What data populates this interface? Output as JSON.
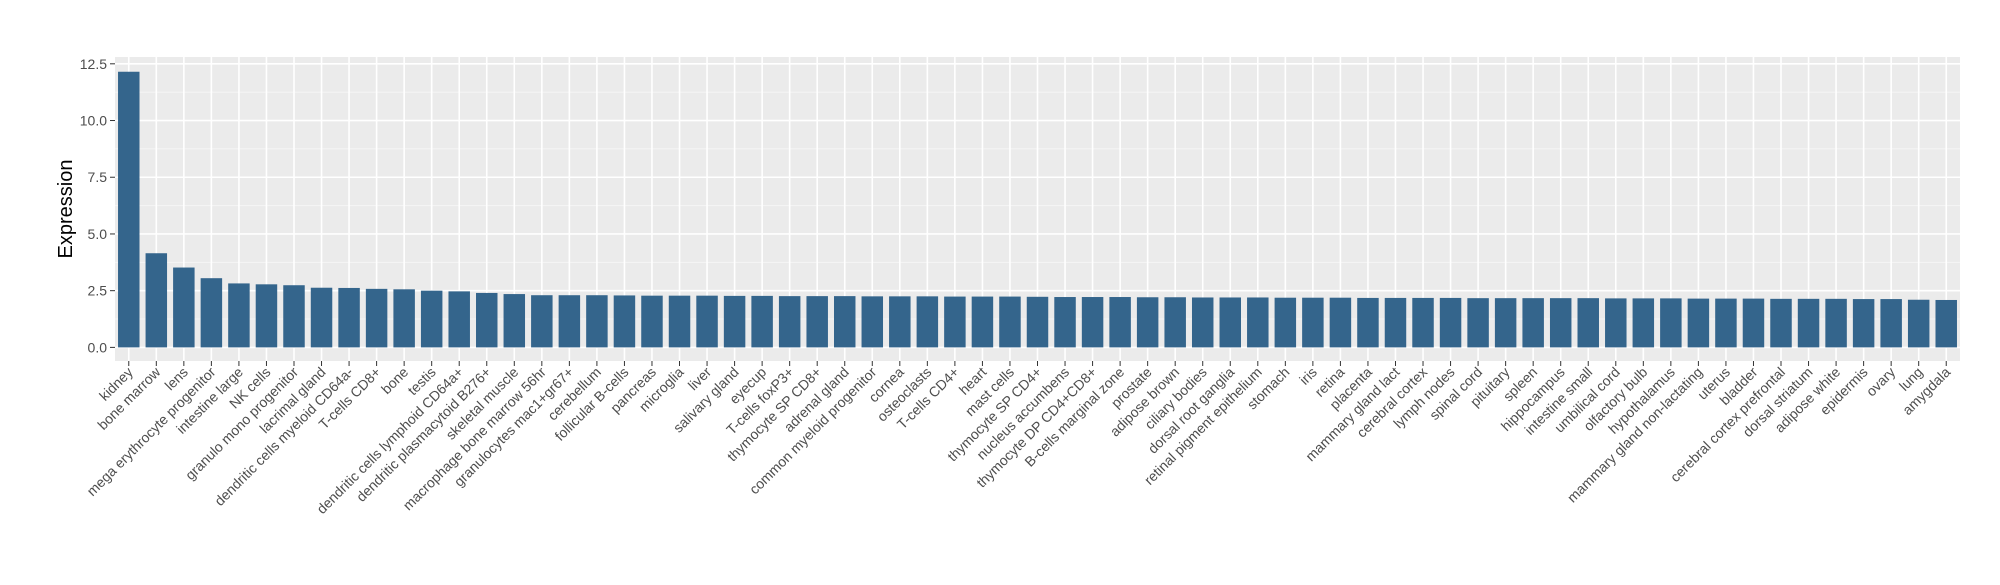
{
  "chart_data": {
    "type": "bar",
    "title": "",
    "xlabel": "",
    "ylabel": "Expression",
    "ylim": [
      -0.6,
      12.8
    ],
    "yticks": [
      0.0,
      2.5,
      5.0,
      7.5,
      10.0,
      12.5
    ],
    "ytick_labels": [
      "0.0",
      "2.5",
      "5.0",
      "7.5",
      "10.0",
      "12.5"
    ],
    "grid": true,
    "legend": "none",
    "colors": {
      "bar": "#34658c",
      "panel": "#ebebeb",
      "grid_major": "#ffffff",
      "grid_minor": "#f5f5f5"
    },
    "categories": [
      "kidney",
      "bone marrow",
      "lens",
      "mega erythrocyte progenitor",
      "intestine large",
      "NK cells",
      "granulo mono progenitor",
      "lacrimal gland",
      "dendritic cells myeloid CD64a-",
      "T-cells CD8+",
      "bone",
      "testis",
      "dendritic cells lymphoid CD64a+",
      "dendritic plasmacytoid B276+",
      "skeletal muscle",
      "macrophage bone marrow 56hr",
      "granulocytes mac1+gr67+",
      "cerebellum",
      "follicular B-cells",
      "pancreas",
      "microglia",
      "liver",
      "salivary gland",
      "eyecup",
      "T-cells foxP3+",
      "thymocyte SP CD8+",
      "adrenal gland",
      "common myeloid progenitor",
      "cornea",
      "osteoclasts",
      "T-cells CD4+",
      "heart",
      "mast cells",
      "thymocyte SP CD4+",
      "nucleus accumbens",
      "thymocyte DP CD4+CD8+",
      "B-cells marginal zone",
      "prostate",
      "adipose brown",
      "ciliary bodies",
      "dorsal root ganglia",
      "retinal pigment epithelium",
      "stomach",
      "iris",
      "retina",
      "placenta",
      "mammary gland  lact",
      "cerebral cortex",
      "lymph nodes",
      "spinal cord",
      "pituitary",
      "spleen",
      "hippocampus",
      "intestine small",
      "umbilical cord",
      "olfactory bulb",
      "hypothalamus",
      "mammary gland non-lactating",
      "uterus",
      "bladder",
      "cerebral cortex prefrontal",
      "dorsal striatum",
      "adipose white",
      "epidermis",
      "ovary",
      "lung",
      "amygdala"
    ],
    "values": [
      12.15,
      4.15,
      3.52,
      3.05,
      2.82,
      2.78,
      2.74,
      2.63,
      2.62,
      2.58,
      2.56,
      2.5,
      2.47,
      2.4,
      2.35,
      2.3,
      2.3,
      2.3,
      2.29,
      2.28,
      2.28,
      2.28,
      2.27,
      2.27,
      2.26,
      2.26,
      2.26,
      2.25,
      2.25,
      2.25,
      2.24,
      2.24,
      2.24,
      2.23,
      2.22,
      2.22,
      2.22,
      2.21,
      2.21,
      2.2,
      2.2,
      2.2,
      2.19,
      2.19,
      2.19,
      2.18,
      2.18,
      2.18,
      2.18,
      2.17,
      2.17,
      2.17,
      2.17,
      2.17,
      2.16,
      2.16,
      2.16,
      2.15,
      2.15,
      2.15,
      2.14,
      2.14,
      2.14,
      2.13,
      2.13,
      2.1,
      2.09
    ]
  }
}
